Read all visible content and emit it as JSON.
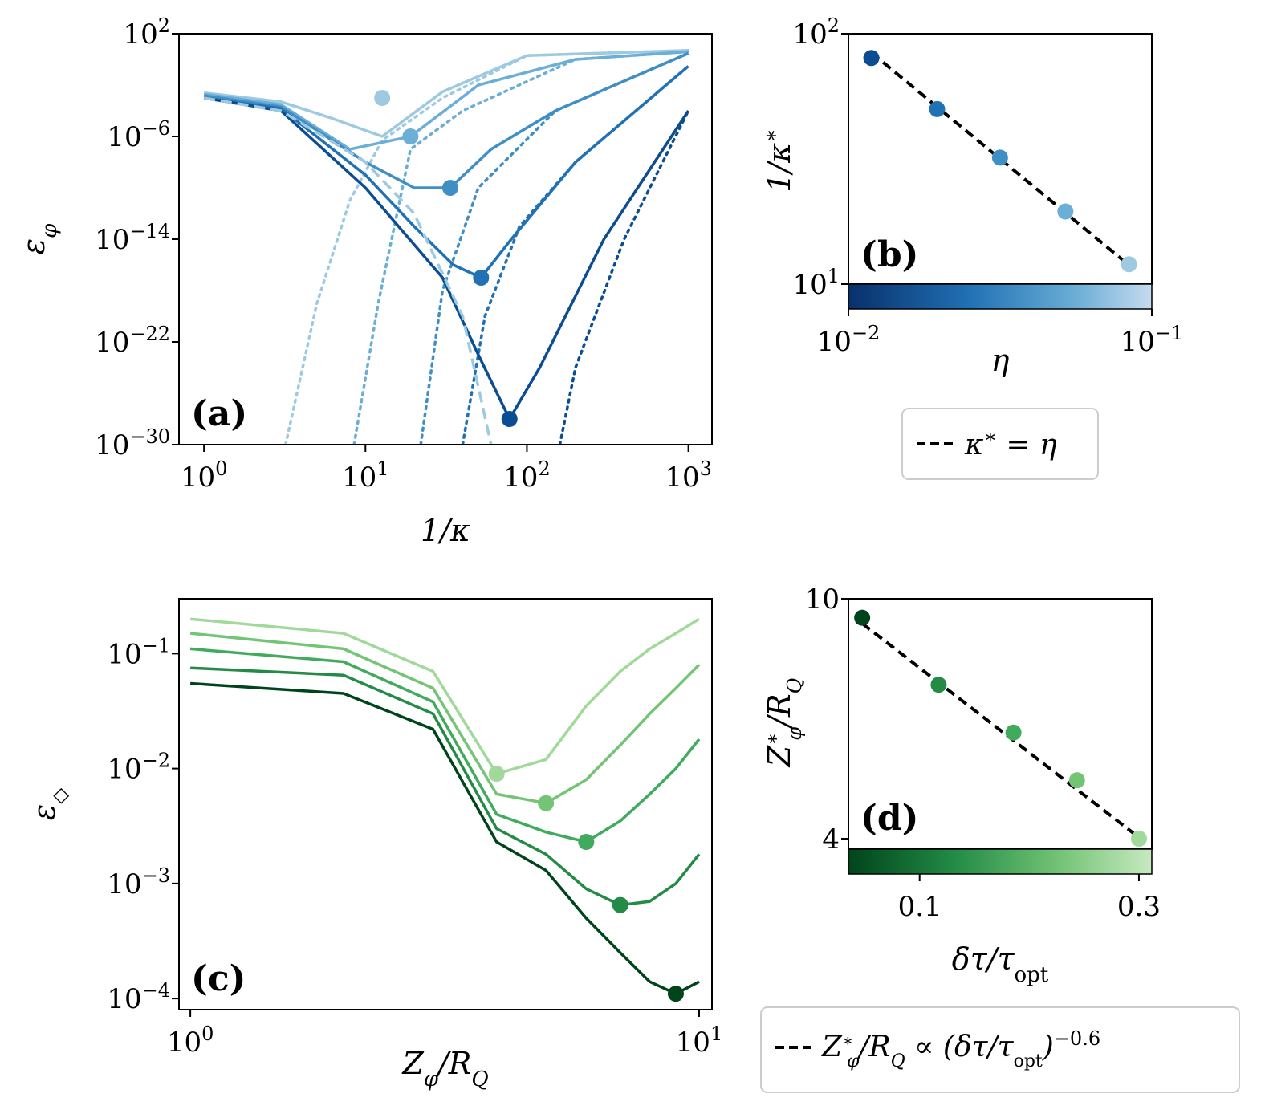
{
  "chart_data": [
    {
      "panel": "(a)",
      "type": "line",
      "xlabel": "1/κ",
      "ylabel": "ε_φ",
      "x_scale": "log",
      "y_scale": "log",
      "xlim": [
        0.7,
        1400
      ],
      "ylim": [
        1e-30,
        100
      ],
      "xticks": [
        {
          "v": 1,
          "b": "10",
          "e": "0"
        },
        {
          "v": 10,
          "b": "10",
          "e": "1"
        },
        {
          "v": 100,
          "b": "10",
          "e": "2"
        },
        {
          "v": 1000,
          "b": "10",
          "e": "3"
        }
      ],
      "yticks": [
        {
          "v": 100,
          "b": "10",
          "e": "2"
        },
        {
          "v": 1e-06,
          "b": "10",
          "e": "−6"
        },
        {
          "v": 1e-14,
          "b": "10",
          "e": "−14"
        },
        {
          "v": 1e-22,
          "b": "10",
          "e": "−22"
        },
        {
          "v": 1e-30,
          "b": "10",
          "e": "−30"
        }
      ],
      "colors": [
        "#9ecae1",
        "#6baed6",
        "#3f8fc5",
        "#2171b5",
        "#0b4d92"
      ],
      "series": [
        {
          "solid": [
            [
              1,
              0.0025
            ],
            [
              3,
              0.0005
            ],
            [
              6,
              3e-05
            ],
            [
              12.7,
              1e-06
            ],
            [
              30,
              0.003
            ],
            [
              100,
              2
            ],
            [
              1000,
              5
            ]
          ],
          "dotted": [
            [
              3.2,
              1e-30
            ],
            [
              5,
              1e-19
            ],
            [
              8,
              1e-11
            ],
            [
              12.7,
              5e-07
            ],
            [
              30,
              0.001
            ],
            [
              100,
              2
            ],
            [
              1000,
              5
            ]
          ],
          "marker": [
            12.7,
            0.001
          ]
        },
        {
          "solid": [
            [
              1,
              0.002
            ],
            [
              3,
              0.0003
            ],
            [
              8,
              1e-07
            ],
            [
              19,
              1e-06
            ],
            [
              50,
              0.01
            ],
            [
              200,
              1
            ],
            [
              1000,
              4
            ]
          ],
          "dotted": [
            [
              8.5,
              1e-30
            ],
            [
              12,
              1e-19
            ],
            [
              19,
              1e-07
            ],
            [
              40,
              0.0001
            ],
            [
              200,
              1
            ],
            [
              1000,
              4
            ]
          ],
          "marker": [
            19,
            1e-06
          ]
        },
        {
          "solid": [
            [
              1,
              0.0015
            ],
            [
              3,
              0.0002
            ],
            [
              10,
              1e-08
            ],
            [
              20,
              1e-10
            ],
            [
              33.5,
              1e-10
            ],
            [
              60,
              1e-07
            ],
            [
              150,
              0.0001
            ],
            [
              1000,
              3
            ]
          ],
          "dotted": [
            [
              22,
              1e-30
            ],
            [
              30,
              1e-18
            ],
            [
              50,
              1e-10
            ],
            [
              150,
              0.0001
            ],
            [
              1000,
              3
            ]
          ],
          "marker": [
            33.5,
            1e-10
          ]
        },
        {
          "solid": [
            [
              1,
              0.001
            ],
            [
              3,
              0.00015
            ],
            [
              10,
              1e-09
            ],
            [
              20,
              1e-13
            ],
            [
              35,
              1e-16
            ],
            [
              52,
              1e-17
            ],
            [
              80,
              1e-14
            ],
            [
              200,
              1e-08
            ],
            [
              1000,
              0.3
            ]
          ],
          "dotted": [
            [
              40,
              1e-30
            ],
            [
              55,
              1e-20
            ],
            [
              90,
              1e-13
            ],
            [
              200,
              1e-08
            ],
            [
              1000,
              0.3
            ]
          ],
          "marker": [
            52,
            1e-17
          ]
        },
        {
          "solid": [
            [
              1,
              0.001
            ],
            [
              3,
              0.0001
            ],
            [
              10,
              1e-10
            ],
            [
              30,
              1e-17
            ],
            [
              50,
              1e-23
            ],
            [
              78,
              1e-28
            ],
            [
              120,
              1e-24
            ],
            [
              300,
              1e-14
            ],
            [
              1000,
              0.0001
            ]
          ],
          "dotted": [
            [
              160,
              1e-30
            ],
            [
              200,
              1e-24
            ],
            [
              400,
              1e-14
            ],
            [
              1000,
              0.0001
            ]
          ],
          "marker": [
            78,
            1e-28
          ]
        }
      ],
      "dashed_envelope": [
        [
          1,
          0.001
        ],
        [
          3,
          0.0001
        ],
        [
          10,
          1e-08
        ],
        [
          20,
          1e-12
        ],
        [
          40,
          1e-20
        ],
        [
          60,
          1e-30
        ]
      ]
    },
    {
      "panel": "(b)",
      "type": "scatter",
      "xlabel": "η",
      "ylabel": "1/κ*",
      "x_scale": "log",
      "y_scale": "log",
      "xlim": [
        0.01,
        0.1
      ],
      "ylim": [
        10,
        100
      ],
      "xticks": [
        {
          "v": 0.01,
          "b": "10",
          "e": "−2"
        },
        {
          "v": 0.1,
          "b": "10",
          "e": "−1"
        }
      ],
      "yticks": [
        {
          "v": 100,
          "b": "10",
          "e": "2"
        },
        {
          "v": 10,
          "b": "10",
          "e": "1"
        }
      ],
      "points": [
        [
          0.0119,
          80
        ],
        [
          0.0196,
          50
        ],
        [
          0.0316,
          32
        ],
        [
          0.0519,
          19.5
        ],
        [
          0.0841,
          12
        ]
      ],
      "colors": [
        "#0b4d92",
        "#2171b5",
        "#3f8fc5",
        "#6baed6",
        "#9ecae1"
      ],
      "fit_line": [
        [
          0.0119,
          84
        ],
        [
          0.0841,
          11.9
        ]
      ],
      "colorbar": [
        "#08306b",
        "#2171b5",
        "#6baed6",
        "#c6dbef"
      ],
      "legend": "κ* = η"
    },
    {
      "panel": "(c)",
      "type": "line",
      "xlabel": "Z_φ/R_Q",
      "ylabel": "ε_◇",
      "x_scale": "log",
      "y_scale": "log",
      "xlim": [
        0.95,
        10.6
      ],
      "ylim": [
        8e-05,
        0.3
      ],
      "xticks": [
        {
          "v": 1,
          "b": "10",
          "e": "0"
        },
        {
          "v": 10,
          "b": "10",
          "e": "1"
        }
      ],
      "yticks": [
        {
          "v": 0.1,
          "b": "10",
          "e": "−1"
        },
        {
          "v": 0.01,
          "b": "10",
          "e": "−2"
        },
        {
          "v": 0.001,
          "b": "10",
          "e": "−3"
        },
        {
          "v": 0.0001,
          "b": "10",
          "e": "−4"
        }
      ],
      "x": [
        1,
        2,
        3,
        4,
        5,
        6,
        7,
        8,
        9,
        10
      ],
      "colors": [
        "#a1d99b",
        "#74c476",
        "#41ab5d",
        "#238b45",
        "#00441b"
      ],
      "series": [
        {
          "values": [
            0.2,
            0.15,
            0.07,
            0.009,
            0.012,
            0.035,
            0.07,
            0.11,
            0.15,
            0.2
          ]
        },
        {
          "values": [
            0.15,
            0.11,
            0.05,
            0.006,
            0.005,
            0.008,
            0.016,
            0.03,
            0.05,
            0.08
          ]
        },
        {
          "values": [
            0.11,
            0.085,
            0.038,
            0.004,
            0.0028,
            0.0023,
            0.0035,
            0.006,
            0.01,
            0.018
          ]
        },
        {
          "values": [
            0.075,
            0.065,
            0.03,
            0.003,
            0.0018,
            0.0009,
            0.00065,
            0.0007,
            0.001,
            0.0018
          ]
        },
        {
          "values": [
            0.055,
            0.045,
            0.022,
            0.0023,
            0.0013,
            0.0005,
            0.00025,
            0.00014,
            0.00011,
            0.00014
          ]
        }
      ],
      "markers": [
        [
          4,
          0.009
        ],
        [
          5,
          0.005
        ],
        [
          6,
          0.0023
        ],
        [
          7,
          0.00065
        ],
        [
          9,
          0.00011
        ]
      ]
    },
    {
      "panel": "(d)",
      "type": "scatter",
      "xlabel": "δτ/τ_opt",
      "ylabel": "Z*_φ/R_Q",
      "x_scale": "log",
      "y_scale": "log",
      "xlim": [
        0.07,
        0.32
      ],
      "ylim": [
        4,
        10
      ],
      "xticks": [
        {
          "v": 0.1,
          "b": "0.1",
          "e": ""
        },
        {
          "v": 0.3,
          "b": "0.3",
          "e": ""
        }
      ],
      "yticks": [
        {
          "v": 10,
          "b": "10",
          "e": ""
        },
        {
          "v": 4,
          "b": "4",
          "e": ""
        }
      ],
      "points": [
        [
          0.075,
          9.3
        ],
        [
          0.11,
          7.2
        ],
        [
          0.16,
          6.0
        ],
        [
          0.22,
          5.0
        ],
        [
          0.3,
          4.0
        ]
      ],
      "colors": [
        "#00441b",
        "#238b45",
        "#41ab5d",
        "#74c476",
        "#a1d99b"
      ],
      "fit_line": [
        [
          0.075,
          9.1
        ],
        [
          0.3,
          4.02
        ]
      ],
      "colorbar": [
        "#00441b",
        "#238b45",
        "#74c476",
        "#c7e9c0"
      ],
      "legend": "Z*_φ/R_Q ∝ (δτ/τ_opt)^−0.6"
    }
  ]
}
